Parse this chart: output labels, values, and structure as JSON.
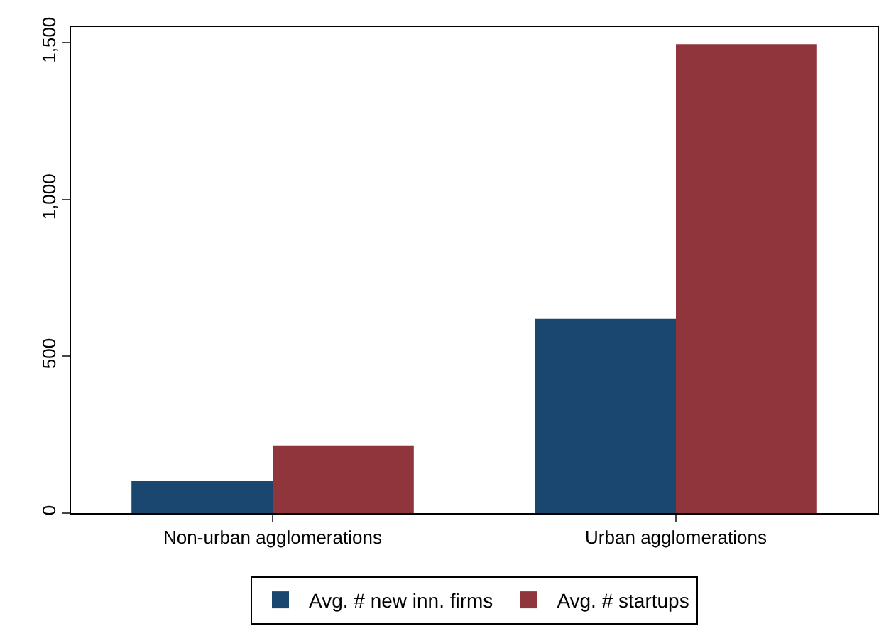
{
  "chart_data": {
    "type": "bar",
    "categories": [
      "Non-urban agglomerations",
      "Urban agglomerations"
    ],
    "series": [
      {
        "name": "Avg. # new inn. firms",
        "color": "#1a476f",
        "values": [
          102,
          619
        ]
      },
      {
        "name": "Avg. # startups",
        "color": "#90353b",
        "values": [
          216,
          1495
        ]
      }
    ],
    "ylim": [
      0,
      1550
    ],
    "yticks": [
      0,
      500,
      {
        "value": 1000,
        "label": "1,000"
      },
      {
        "value": 1500,
        "label": "1,500"
      }
    ],
    "grid": false,
    "legend": "bottom"
  }
}
